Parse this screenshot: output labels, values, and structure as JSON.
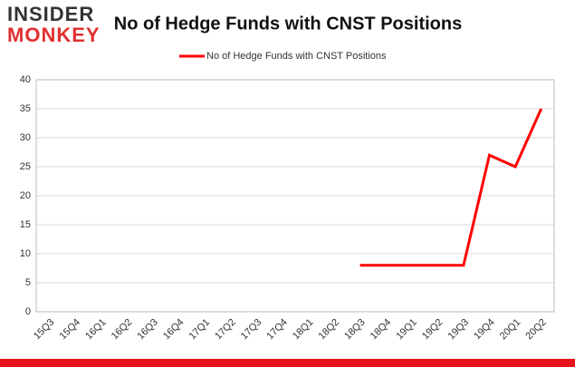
{
  "logo": {
    "line1": "INSIDER",
    "line2": "MONKEY"
  },
  "chart_data": {
    "type": "line",
    "title": "No of Hedge Funds with CNST Positions",
    "categories": [
      "15Q3",
      "15Q4",
      "16Q1",
      "16Q2",
      "16Q3",
      "16Q4",
      "17Q1",
      "17Q2",
      "17Q3",
      "17Q4",
      "18Q1",
      "18Q2",
      "18Q3",
      "18Q4",
      "19Q1",
      "19Q2",
      "19Q3",
      "19Q4",
      "20Q1",
      "20Q2"
    ],
    "series": [
      {
        "name": "No of Hedge Funds with CNST Positions",
        "color": "#ff0000",
        "values": [
          null,
          null,
          null,
          null,
          null,
          null,
          null,
          null,
          null,
          null,
          null,
          null,
          8,
          8,
          8,
          8,
          8,
          27,
          25,
          35
        ]
      }
    ],
    "ylim": [
      0,
      40
    ],
    "yticks": [
      0,
      5,
      10,
      15,
      20,
      25,
      30,
      35,
      40
    ],
    "grid": true,
    "legend": "top"
  }
}
